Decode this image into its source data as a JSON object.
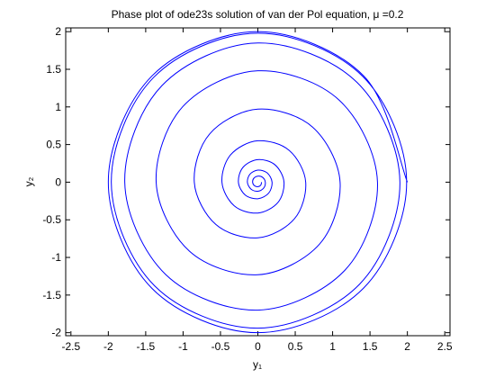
{
  "chart_data": {
    "type": "line",
    "title": "Phase plot of ode23s solution of van der Pol equation, μ =0.2",
    "xlabel": "y₁",
    "ylabel": "y₂",
    "xlim": [
      -2.57,
      2.57
    ],
    "ylim": [
      -2.04,
      2.05
    ],
    "xticks": [
      -2.5,
      -2,
      -1.5,
      -1,
      -0.5,
      0,
      0.5,
      1,
      1.5,
      2,
      2.5
    ],
    "yticks": [
      -2,
      -1.5,
      -1,
      -0.5,
      0,
      0.5,
      1,
      1.5,
      2
    ],
    "x": [
      0.05,
      0.039,
      0,
      -0.046,
      -0.07,
      -0.053,
      0,
      0.064,
      0.1,
      0.078,
      0,
      -0.092,
      -0.14,
      -0.106,
      0,
      0.124,
      0.19,
      0.145,
      0,
      -0.17,
      -0.26,
      -0.198,
      0,
      0.23,
      0.35,
      0.269,
      0,
      -0.315,
      -0.48,
      -0.364,
      0,
      0.421,
      0.64,
      0.488,
      0,
      -0.562,
      -0.85,
      -0.643,
      0,
      0.732,
      1.1,
      0.824,
      0,
      -0.916,
      -1.36,
      -1.004,
      0,
      1.089,
      1.6,
      1.167,
      0,
      -1.23,
      -1.78,
      -1.283,
      0,
      1.326,
      1.9,
      1.358,
      0,
      -1.379,
      -1.96,
      -1.393,
      0,
      1.404,
      1.99,
      1.411,
      0,
      -1.414,
      -2,
      -1.414,
      0,
      1.414,
      2
    ],
    "series": [
      {
        "color": "#0000ff",
        "values": [
          0,
          -0.039,
          -0.06,
          -0.046,
          0,
          0.053,
          0.08,
          0.064,
          0,
          -0.078,
          -0.12,
          -0.092,
          0,
          0.106,
          0.16,
          0.124,
          0,
          -0.145,
          -0.22,
          -0.17,
          0,
          0.198,
          0.3,
          0.23,
          0,
          -0.269,
          -0.41,
          -0.315,
          0,
          0.364,
          0.55,
          0.421,
          0,
          -0.488,
          -0.74,
          -0.562,
          0,
          0.643,
          0.97,
          0.732,
          0,
          -0.824,
          -1.23,
          -0.916,
          0,
          1.004,
          1.48,
          1.089,
          0,
          -1.167,
          -1.7,
          -1.23,
          0,
          1.283,
          1.85,
          1.326,
          0,
          -1.358,
          -1.94,
          -1.379,
          0,
          1.393,
          1.98,
          1.404,
          0,
          -1.411,
          -2,
          -1.414,
          0,
          1.414,
          2,
          1.414,
          0
        ]
      }
    ]
  }
}
